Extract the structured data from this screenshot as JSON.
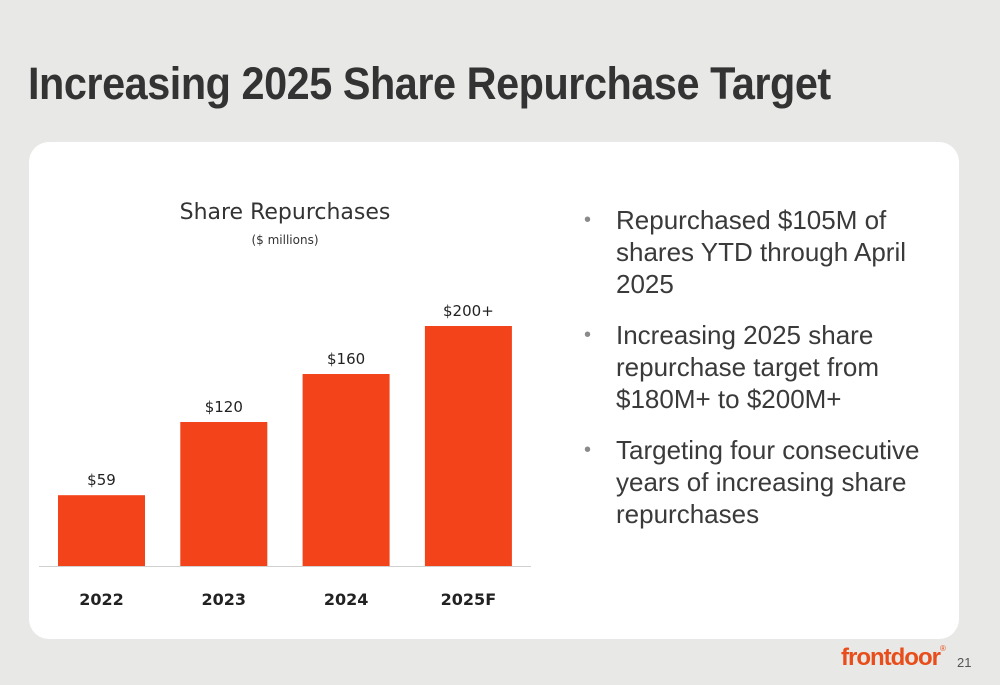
{
  "slide": {
    "title": "Increasing 2025 Share Repurchase Target",
    "page_number": "21",
    "logo_text": "frontdoor",
    "logo_tm": "®"
  },
  "bullets": [
    "Repurchased $105M of shares YTD through April 2025",
    "Increasing 2025 share repurchase target from $180M+ to $200M+",
    "Targeting four consecutive years of increasing share repurchases"
  ],
  "chart_data": {
    "type": "bar",
    "title": "Share Repurchases",
    "subtitle": "($ millions)",
    "categories": [
      "2022",
      "2023",
      "2024",
      "2025F"
    ],
    "values": [
      59,
      120,
      160,
      200
    ],
    "data_labels": [
      "$59",
      "$120",
      "$160",
      "$200+"
    ],
    "xlabel": "",
    "ylabel": "",
    "grid": false,
    "bar_color": "#f2431a"
  },
  "colors": {
    "accent": "#f2431a",
    "logo": "#e84e1b",
    "background": "#e8e8e6",
    "card": "#ffffff"
  }
}
